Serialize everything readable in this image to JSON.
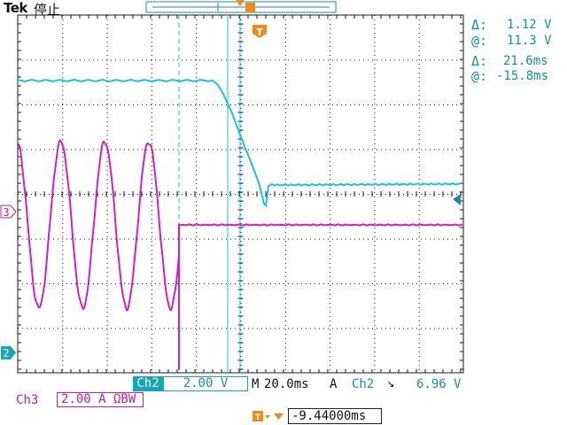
{
  "header": {
    "brand": "Tek",
    "run_state": "停止"
  },
  "cursor_readouts": {
    "voltage_delta_symbol": "Δ:",
    "voltage_delta": "1.12 V",
    "voltage_at_symbol": "@:",
    "voltage_at": "11.3 V",
    "time_delta_symbol": "Δ:",
    "time_delta": "21.6ms",
    "time_at_symbol": "@:",
    "time_at": "-15.8ms"
  },
  "markers": {
    "trigger_marker": "T",
    "ch3_marker": "3",
    "ch2_marker": "2"
  },
  "bottom_bar": {
    "ch2_label": "Ch2",
    "ch2_scale": "2.00 V",
    "horizontal_label": "M",
    "horizontal_scale": "20.0ms",
    "trigger_mode": "A",
    "trigger_source": "Ch2",
    "trigger_slope_symbol": "↘",
    "trigger_level": "6.96 V",
    "ch3_label": "Ch3",
    "ch3_scale": "2.00 A ΩBW",
    "trigger_offset": "-9.44000ms"
  },
  "colors": {
    "ch2": "#1cc3d6",
    "ch3": "#d41fc0",
    "accent_orange": "#f08a1c",
    "grid": "#1a1a1a"
  },
  "waveforms": {
    "ch3": {
      "shape": "sine-then-flat",
      "cycles": 4
    },
    "ch2": {
      "shape": "high-drop-low"
    }
  }
}
